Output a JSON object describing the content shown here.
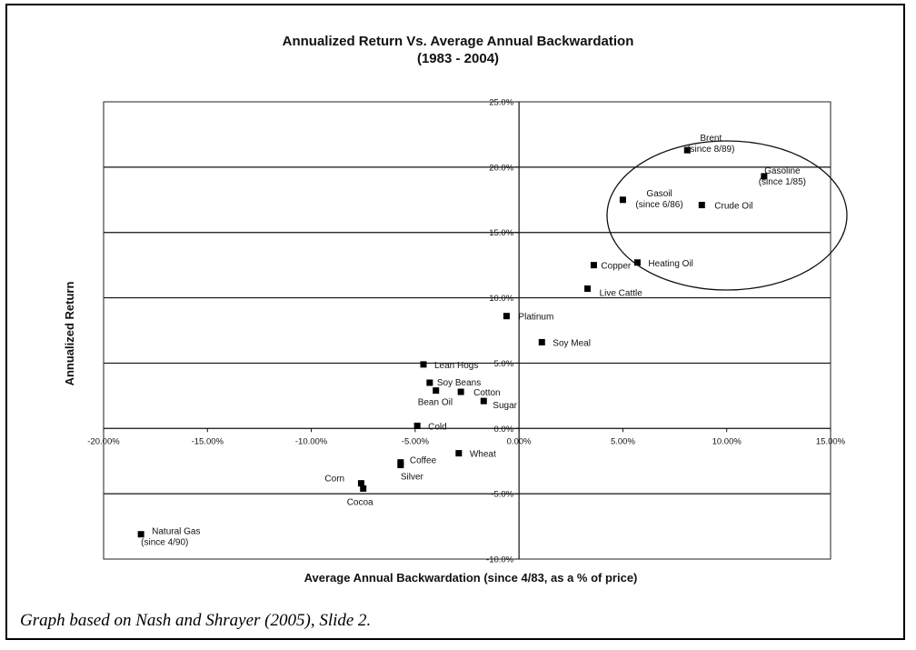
{
  "chart_data": {
    "type": "scatter",
    "title": "Annualized Return Vs. Average Annual Backwardation",
    "subtitle": "(1983 - 2004)",
    "xlabel": "Average Annual Backwardation (since 4/83, as a % of price)",
    "ylabel": "Annualized Return",
    "xlim": [
      -20,
      15
    ],
    "ylim": [
      -10,
      25
    ],
    "x_ticks": [
      -20,
      -15,
      -10,
      -5,
      0,
      5,
      10,
      15
    ],
    "x_tick_labels": [
      "-20.00%",
      "-15.00%",
      "-10.00%",
      "-5.00%",
      "0.00%",
      "5.00%",
      "10.00%",
      "15.00%"
    ],
    "y_ticks": [
      -10,
      -5,
      0,
      5,
      10,
      15,
      20,
      25
    ],
    "y_tick_labels": [
      "-10.0%",
      "-5.0%",
      "0.0%",
      "5.0%",
      "10.0%",
      "15.0%",
      "20.0%",
      "25.0%"
    ],
    "grid": true,
    "points": [
      {
        "label": "Brent",
        "label2": "(since 8/89)",
        "x": 8.1,
        "y": 21.3
      },
      {
        "label": "Gasoline",
        "label2": "(since 1/85)",
        "x": 11.8,
        "y": 19.3
      },
      {
        "label": "Gasoil",
        "label2": "(since 6/86)",
        "x": 5.0,
        "y": 17.5
      },
      {
        "label": "Crude Oil",
        "label2": "",
        "x": 8.8,
        "y": 17.1
      },
      {
        "label": "Heating Oil",
        "label2": "",
        "x": 5.7,
        "y": 12.7
      },
      {
        "label": "Copper",
        "label2": "",
        "x": 3.6,
        "y": 12.5
      },
      {
        "label": "Live Cattle",
        "label2": "",
        "x": 3.3,
        "y": 10.7
      },
      {
        "label": "Platinum",
        "label2": "",
        "x": -0.6,
        "y": 8.6
      },
      {
        "label": "Soy Meal",
        "label2": "",
        "x": 1.1,
        "y": 6.6
      },
      {
        "label": "Lean Hogs",
        "label2": "",
        "x": -4.6,
        "y": 4.9
      },
      {
        "label": "Soy Beans",
        "label2": "",
        "x": -4.3,
        "y": 3.5
      },
      {
        "label": "Bean Oil",
        "label2": "",
        "x": -4.0,
        "y": 2.9
      },
      {
        "label": "Cotton",
        "label2": "",
        "x": -2.8,
        "y": 2.8
      },
      {
        "label": "Sugar",
        "label2": "",
        "x": -1.7,
        "y": 2.1
      },
      {
        "label": "Cold",
        "label2": "",
        "x": -4.9,
        "y": 0.2
      },
      {
        "label": "Wheat",
        "label2": "",
        "x": -2.9,
        "y": -1.9
      },
      {
        "label": "Coffee",
        "label2": "",
        "x": -5.7,
        "y": -2.6
      },
      {
        "label": "Silver",
        "label2": "",
        "x": -5.7,
        "y": -2.8
      },
      {
        "label": "Corn",
        "label2": "",
        "x": -7.6,
        "y": -4.2
      },
      {
        "label": "Cocoa",
        "label2": "",
        "x": -7.5,
        "y": -4.6
      },
      {
        "label": "Natural Gas",
        "label2": "(since 4/90)",
        "x": -18.2,
        "y": -8.1
      }
    ],
    "annotation": "ellipse around energy commodities"
  },
  "caption": "Graph based on Nash and Shrayer (2005), Slide 2."
}
